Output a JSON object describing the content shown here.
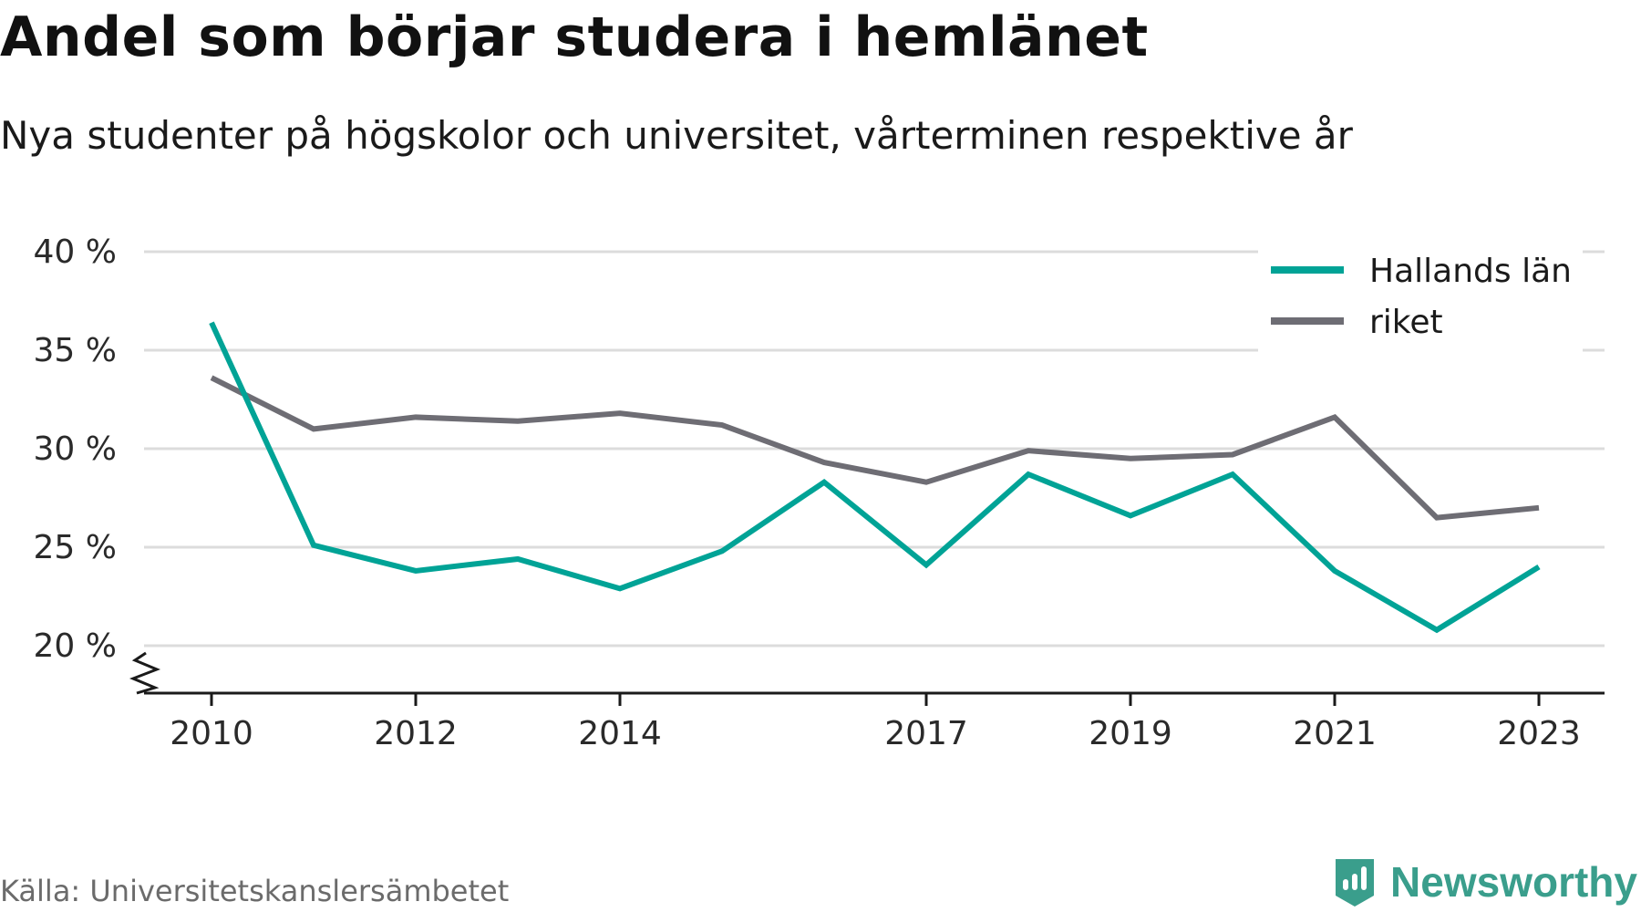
{
  "header": {
    "title": "Andel som börjar studera i hemlänet",
    "subtitle": "Nya studenter på högskolor och universitet, vårterminen respektive år"
  },
  "footer": {
    "source": "Källa: Universitetskanslersämbetet",
    "brand": "Newsworthy",
    "brand_icon": "newsworthy-logo-icon",
    "brand_color": "#3a9e8c"
  },
  "chart_data": {
    "type": "line",
    "x": [
      2010,
      2011,
      2012,
      2013,
      2014,
      2015,
      2016,
      2017,
      2018,
      2019,
      2020,
      2021,
      2022,
      2023
    ],
    "x_tick_labels": [
      "2010",
      "2012",
      "2014",
      "2017",
      "2019",
      "2021",
      "2023"
    ],
    "x_tick_values": [
      2010,
      2012,
      2014,
      2017,
      2019,
      2021,
      2023
    ],
    "y_tick_labels": [
      "20 %",
      "25 %",
      "30 %",
      "35 %",
      "40 %"
    ],
    "y_tick_values": [
      20,
      25,
      30,
      35,
      40
    ],
    "ylim": [
      18,
      40
    ],
    "axis_break": true,
    "grid": true,
    "legend_position": "top-right",
    "series": [
      {
        "name": "Hallands län",
        "color": "#00a396",
        "values": [
          36.4,
          25.1,
          23.8,
          24.4,
          22.9,
          24.8,
          28.3,
          24.1,
          28.7,
          26.6,
          28.7,
          23.8,
          20.8,
          24.0
        ]
      },
      {
        "name": "riket",
        "color": "#6e6d74",
        "values": [
          33.6,
          31.0,
          31.6,
          31.4,
          31.8,
          31.2,
          29.3,
          28.3,
          29.9,
          29.5,
          29.7,
          31.6,
          26.5,
          27.0
        ]
      }
    ]
  }
}
